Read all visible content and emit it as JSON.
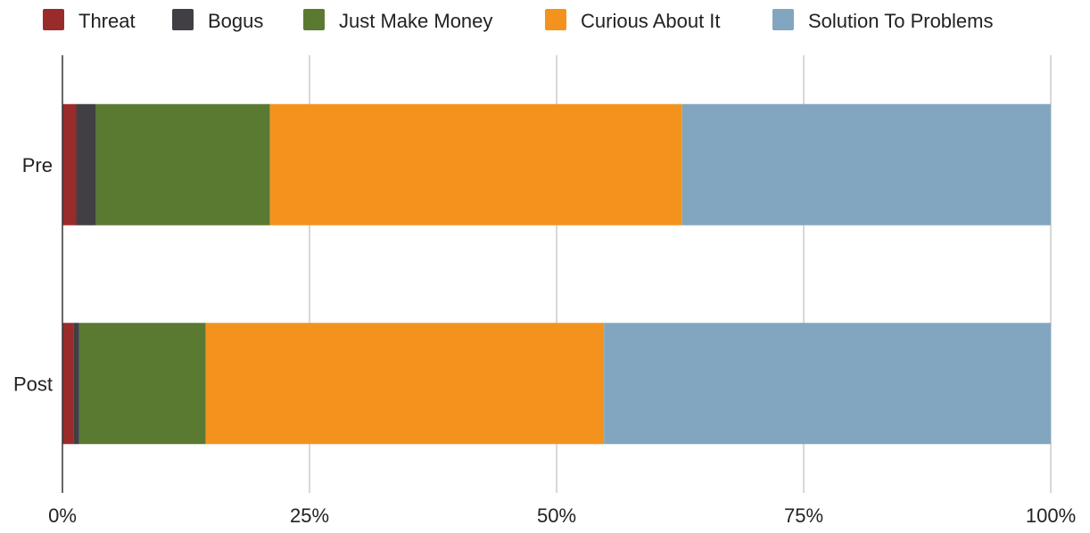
{
  "chart_data": {
    "type": "bar",
    "orientation": "horizontal",
    "stacked": "percent",
    "categories": [
      "Pre",
      "Post"
    ],
    "series": [
      {
        "name": "Threat",
        "color": "#9a2b2b",
        "values": [
          1.4,
          1.1
        ]
      },
      {
        "name": "Bogus",
        "color": "#413f44",
        "values": [
          2.0,
          0.6
        ]
      },
      {
        "name": "Just Make Money",
        "color": "#5a7a32",
        "values": [
          17.6,
          12.8
        ]
      },
      {
        "name": "Curious About It",
        "color": "#f3931e",
        "values": [
          41.7,
          40.3
        ]
      },
      {
        "name": "Solution To Problems",
        "color": "#82a6bf",
        "values": [
          37.3,
          45.2
        ]
      }
    ],
    "xlim": [
      0,
      100
    ],
    "xticks": [
      0,
      25,
      50,
      75,
      100
    ],
    "xtick_labels": [
      "0%",
      "25%",
      "50%",
      "75%",
      "100%"
    ],
    "grid": "vertical",
    "legend": "top",
    "title": "",
    "xlabel": "",
    "ylabel": ""
  }
}
